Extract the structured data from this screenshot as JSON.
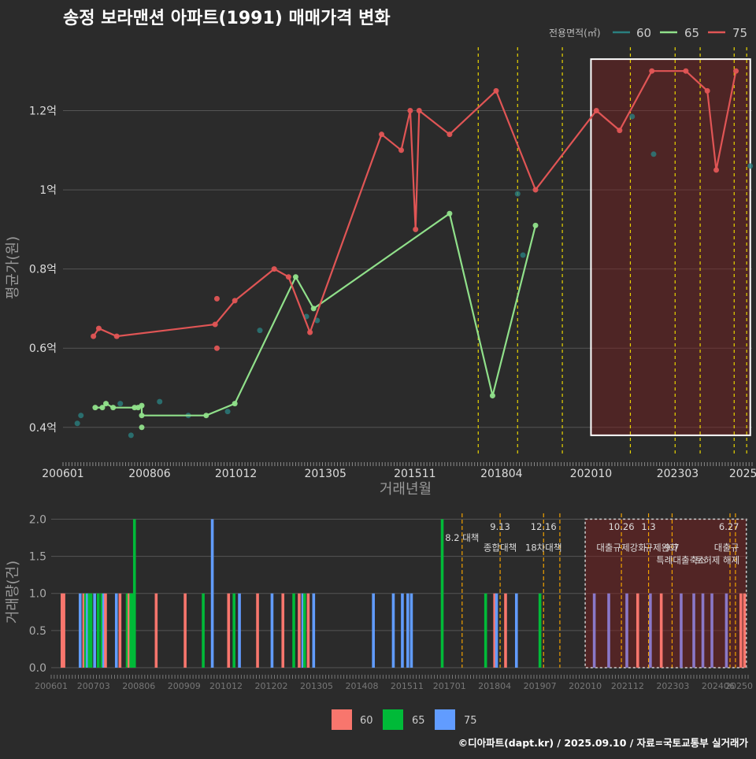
{
  "title": "송정 보라맨션 아파트(1991) 매매가격 변화",
  "legend": {
    "title": "전용면적(㎡)",
    "items": [
      {
        "label": "60",
        "color": "#2a7f7f"
      },
      {
        "label": "65",
        "color": "#90e08a"
      },
      {
        "label": "75",
        "color": "#e05555"
      }
    ]
  },
  "bottom_legend": [
    {
      "label": "60",
      "color": "#f8766d"
    },
    {
      "label": "65",
      "color": "#00ba38"
    },
    {
      "label": "75",
      "color": "#619cff"
    }
  ],
  "footer": "©디아파트(dapt.kr) / 2025.09.10 / 자료=국토교통부 실거래가",
  "chart_data": [
    {
      "type": "line",
      "xlabel": "거래년월",
      "ylabel": "평균가(원)",
      "xlim": [
        2006.0,
        2025.25
      ],
      "ylim": [
        0.33,
        1.37
      ],
      "x_ticks": [
        {
          "value": 2006.0,
          "label": "200601"
        },
        {
          "value": 2008.42,
          "label": "200806"
        },
        {
          "value": 2010.83,
          "label": "201012"
        },
        {
          "value": 2013.33,
          "label": "201305"
        },
        {
          "value": 2015.83,
          "label": "201511"
        },
        {
          "value": 2018.25,
          "label": "201804"
        },
        {
          "value": 2020.75,
          "label": "202010"
        },
        {
          "value": 2023.17,
          "label": "202303"
        },
        {
          "value": 2025.0,
          "label": "2025"
        }
      ],
      "y_ticks": [
        {
          "value": 0.4,
          "label": "0.4억"
        },
        {
          "value": 0.6,
          "label": "0.6억"
        },
        {
          "value": 0.8,
          "label": "0.8억"
        },
        {
          "value": 1.0,
          "label": "1억"
        },
        {
          "value": 1.2,
          "label": "1.2억"
        }
      ],
      "highlight_x": [
        2020.75,
        2025.2
      ],
      "highlight_y": [
        0.38,
        1.33
      ],
      "vlines": [
        2017.6,
        2018.7,
        2019.95,
        2021.85,
        2023.1,
        2023.8,
        2024.75,
        2025.1
      ],
      "series": [
        {
          "name": "60",
          "color": "#2a7f7f",
          "line": false,
          "points": [
            [
              2006.4,
              0.41
            ],
            [
              2006.5,
              0.43
            ],
            [
              2007.6,
              0.46
            ],
            [
              2007.9,
              0.38
            ],
            [
              2008.7,
              0.465
            ],
            [
              2009.5,
              0.43
            ],
            [
              2010.6,
              0.44
            ],
            [
              2011.5,
              0.645
            ],
            [
              2012.8,
              0.68
            ],
            [
              2013.1,
              0.67
            ],
            [
              2018.7,
              0.99
            ],
            [
              2018.85,
              0.835
            ],
            [
              2021.9,
              1.185
            ],
            [
              2022.5,
              1.09
            ],
            [
              2025.2,
              1.06
            ]
          ]
        },
        {
          "name": "65",
          "color": "#90e08a",
          "line": true,
          "points": [
            [
              2006.9,
              0.45
            ],
            [
              2007.1,
              0.45
            ],
            [
              2007.2,
              0.46
            ],
            [
              2007.4,
              0.45
            ],
            [
              2008.0,
              0.45
            ],
            [
              2008.1,
              0.45
            ],
            [
              2008.2,
              0.455
            ],
            [
              2008.2,
              0.43
            ],
            [
              2010.0,
              0.43
            ],
            [
              2010.8,
              0.46
            ],
            [
              2012.5,
              0.78
            ],
            [
              2013.0,
              0.7
            ],
            [
              2016.8,
              0.94
            ],
            [
              2018.0,
              0.48
            ],
            [
              2019.2,
              0.91
            ]
          ],
          "extra_points": [
            [
              2008.2,
              0.4
            ]
          ]
        },
        {
          "name": "75",
          "color": "#e05555",
          "line": true,
          "points": [
            [
              2006.85,
              0.63
            ],
            [
              2007.0,
              0.65
            ],
            [
              2007.5,
              0.63
            ],
            [
              2010.25,
              0.66
            ],
            [
              2010.8,
              0.72
            ],
            [
              2011.9,
              0.8
            ],
            [
              2012.3,
              0.78
            ],
            [
              2012.9,
              0.64
            ],
            [
              2014.9,
              1.14
            ],
            [
              2015.45,
              1.1
            ],
            [
              2015.7,
              1.2
            ],
            [
              2015.85,
              0.9
            ],
            [
              2015.95,
              1.2
            ],
            [
              2016.8,
              1.14
            ],
            [
              2018.1,
              1.25
            ],
            [
              2019.2,
              1.0
            ],
            [
              2020.9,
              1.2
            ],
            [
              2021.55,
              1.15
            ],
            [
              2022.45,
              1.3
            ],
            [
              2023.4,
              1.3
            ],
            [
              2024.0,
              1.25
            ],
            [
              2024.25,
              1.05
            ],
            [
              2024.8,
              1.3
            ]
          ],
          "extra_points": [
            [
              2010.3,
              0.725
            ],
            [
              2010.3,
              0.6
            ]
          ]
        }
      ]
    },
    {
      "type": "bar",
      "ylabel": "거래량(건)",
      "xlim": [
        2006.0,
        2025.25
      ],
      "ylim": [
        0,
        2.1
      ],
      "x_ticks": [
        {
          "value": 2006.0,
          "label": "200601"
        },
        {
          "value": 2007.17,
          "label": "200703"
        },
        {
          "value": 2008.42,
          "label": "200806"
        },
        {
          "value": 2009.67,
          "label": "200909"
        },
        {
          "value": 2010.83,
          "label": "201012"
        },
        {
          "value": 2012.08,
          "label": "201202"
        },
        {
          "value": 2013.33,
          "label": "201305"
        },
        {
          "value": 2014.58,
          "label": "201408"
        },
        {
          "value": 2015.83,
          "label": "201511"
        },
        {
          "value": 2017.0,
          "label": "201701"
        },
        {
          "value": 2018.25,
          "label": "201804"
        },
        {
          "value": 2019.5,
          "label": "201907"
        },
        {
          "value": 2020.75,
          "label": "202010"
        },
        {
          "value": 2021.92,
          "label": "202112"
        },
        {
          "value": 2023.17,
          "label": "202303"
        },
        {
          "value": 2024.42,
          "label": "202406"
        },
        {
          "value": 2025.0,
          "label": "20250"
        }
      ],
      "y_ticks": [
        {
          "value": 0.0,
          "label": "0.0"
        },
        {
          "value": 0.5,
          "label": "0.5"
        },
        {
          "value": 1.0,
          "label": "1.0"
        },
        {
          "value": 1.5,
          "label": "1.5"
        },
        {
          "value": 2.0,
          "label": "2.0"
        }
      ],
      "highlight_x": [
        2020.75,
        2025.2
      ],
      "highlight_y": [
        0,
        2.0
      ],
      "bars": [
        {
          "x": 2006.3,
          "v": 1,
          "s": "60"
        },
        {
          "x": 2006.35,
          "v": 1,
          "s": "60"
        },
        {
          "x": 2006.8,
          "v": 1,
          "s": "75"
        },
        {
          "x": 2006.9,
          "v": 1,
          "s": "60"
        },
        {
          "x": 2006.95,
          "v": 1,
          "s": "65"
        },
        {
          "x": 2007.0,
          "v": 1,
          "s": "75"
        },
        {
          "x": 2007.05,
          "v": 1,
          "s": "65"
        },
        {
          "x": 2007.1,
          "v": 1,
          "s": "65"
        },
        {
          "x": 2007.2,
          "v": 1,
          "s": "75"
        },
        {
          "x": 2007.3,
          "v": 1,
          "s": "65"
        },
        {
          "x": 2007.4,
          "v": 1,
          "s": "65"
        },
        {
          "x": 2007.45,
          "v": 1,
          "s": "75"
        },
        {
          "x": 2007.5,
          "v": 1,
          "s": "60"
        },
        {
          "x": 2007.8,
          "v": 1,
          "s": "75"
        },
        {
          "x": 2007.9,
          "v": 1,
          "s": "60"
        },
        {
          "x": 2008.1,
          "v": 1,
          "s": "65"
        },
        {
          "x": 2008.15,
          "v": 1,
          "s": "60"
        },
        {
          "x": 2008.2,
          "v": 1,
          "s": "65"
        },
        {
          "x": 2008.25,
          "v": 1,
          "s": "65"
        },
        {
          "x": 2008.3,
          "v": 2,
          "s": "65"
        },
        {
          "x": 2008.9,
          "v": 1,
          "s": "60"
        },
        {
          "x": 2009.7,
          "v": 1,
          "s": "60"
        },
        {
          "x": 2010.2,
          "v": 1,
          "s": "65"
        },
        {
          "x": 2010.45,
          "v": 2,
          "s": "75"
        },
        {
          "x": 2010.9,
          "v": 1,
          "s": "60"
        },
        {
          "x": 2011.05,
          "v": 1,
          "s": "65"
        },
        {
          "x": 2011.2,
          "v": 1,
          "s": "75"
        },
        {
          "x": 2011.7,
          "v": 1,
          "s": "60"
        },
        {
          "x": 2012.1,
          "v": 1,
          "s": "75"
        },
        {
          "x": 2012.4,
          "v": 1,
          "s": "60"
        },
        {
          "x": 2012.7,
          "v": 1,
          "s": "65"
        },
        {
          "x": 2012.85,
          "v": 1,
          "s": "60"
        },
        {
          "x": 2012.95,
          "v": 1,
          "s": "75"
        },
        {
          "x": 2013.0,
          "v": 1,
          "s": "65"
        },
        {
          "x": 2013.1,
          "v": 1,
          "s": "60"
        },
        {
          "x": 2013.25,
          "v": 1,
          "s": "75"
        },
        {
          "x": 2014.9,
          "v": 1,
          "s": "75"
        },
        {
          "x": 2015.45,
          "v": 1,
          "s": "75"
        },
        {
          "x": 2015.7,
          "v": 1,
          "s": "75"
        },
        {
          "x": 2015.85,
          "v": 1,
          "s": "75"
        },
        {
          "x": 2015.95,
          "v": 1,
          "s": "75"
        },
        {
          "x": 2016.8,
          "v": 2,
          "s": "65"
        },
        {
          "x": 2018.0,
          "v": 1,
          "s": "65"
        },
        {
          "x": 2018.25,
          "v": 1,
          "s": "60"
        },
        {
          "x": 2018.3,
          "v": 1,
          "s": "75"
        },
        {
          "x": 2018.55,
          "v": 1,
          "s": "60"
        },
        {
          "x": 2018.85,
          "v": 1,
          "s": "75"
        },
        {
          "x": 2019.5,
          "v": 1,
          "s": "65"
        },
        {
          "x": 2021.0,
          "v": 1,
          "s": "75"
        },
        {
          "x": 2021.4,
          "v": 1,
          "s": "75"
        },
        {
          "x": 2021.9,
          "v": 1,
          "s": "75"
        },
        {
          "x": 2022.2,
          "v": 1,
          "s": "60"
        },
        {
          "x": 2022.55,
          "v": 1,
          "s": "75"
        },
        {
          "x": 2022.85,
          "v": 1,
          "s": "60"
        },
        {
          "x": 2023.4,
          "v": 1,
          "s": "75"
        },
        {
          "x": 2023.75,
          "v": 1,
          "s": "75"
        },
        {
          "x": 2024.0,
          "v": 1,
          "s": "75"
        },
        {
          "x": 2024.25,
          "v": 1,
          "s": "75"
        },
        {
          "x": 2024.65,
          "v": 1,
          "s": "75"
        },
        {
          "x": 2025.05,
          "v": 1,
          "s": "60"
        },
        {
          "x": 2025.15,
          "v": 1,
          "s": "60"
        }
      ],
      "vlines": [
        2017.35,
        2018.4,
        2019.6,
        2020.05,
        2021.75,
        2022.5,
        2023.15,
        2024.75,
        2024.9
      ],
      "annotations": [
        {
          "x": 2017.35,
          "y": 1.75,
          "text": "8.2 대책"
        },
        {
          "x": 2018.4,
          "y": 1.9,
          "text": "9.13"
        },
        {
          "x": 2018.4,
          "y": 1.62,
          "text": "종합대책"
        },
        {
          "x": 2019.6,
          "y": 1.9,
          "text": "12.16"
        },
        {
          "x": 2019.6,
          "y": 1.62,
          "text": "18차대책"
        },
        {
          "x": 2021.75,
          "y": 1.9,
          "text": "10.26"
        },
        {
          "x": 2021.75,
          "y": 1.62,
          "text": "대출규제강화"
        },
        {
          "x": 2022.5,
          "y": 1.9,
          "text": "1.3"
        },
        {
          "x": 2022.85,
          "y": 1.62,
          "text": "규제완화"
        },
        {
          "x": 2023.15,
          "y": 1.62,
          "text": "9.7"
        },
        {
          "x": 2023.4,
          "y": 1.45,
          "text": "특례대출축소"
        },
        {
          "x": 2024.4,
          "y": 1.45,
          "text": "토허제 해제"
        },
        {
          "x": 2025.0,
          "y": 1.9,
          "text": "6.27"
        },
        {
          "x": 2025.0,
          "y": 1.62,
          "text": "대출규"
        }
      ]
    }
  ]
}
